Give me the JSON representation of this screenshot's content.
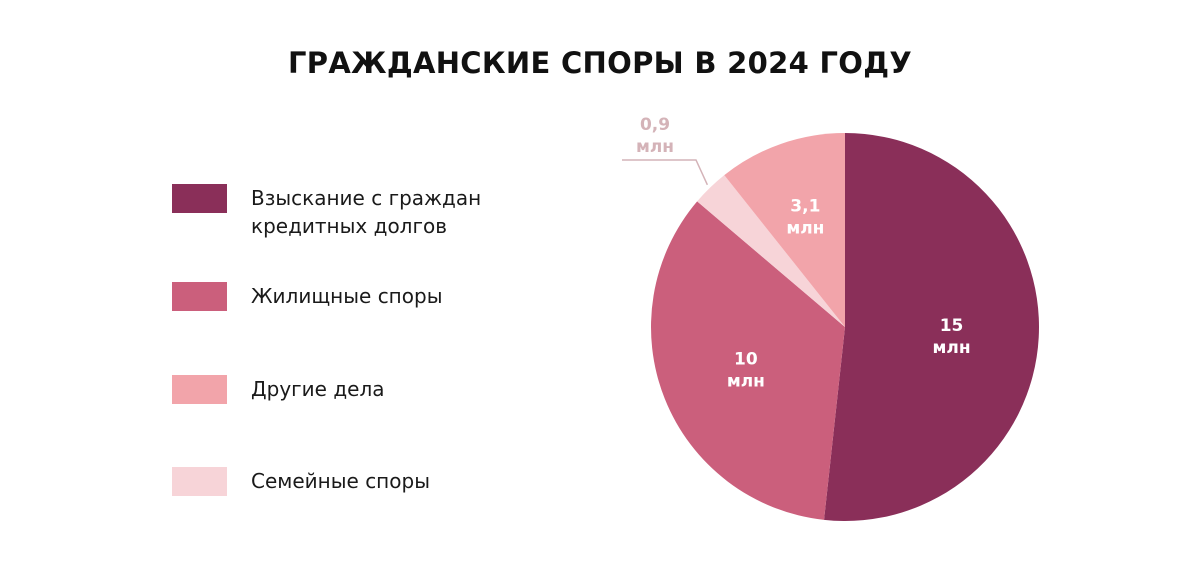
{
  "chart_data": {
    "type": "pie",
    "title": "ГРАЖДАНСКИЕ СПОРЫ В 2024 ГОДУ",
    "slices": [
      {
        "name": "Взыскание с граждан\nкредитных долгов",
        "value": 15,
        "label_top": "15",
        "label_bottom": "млн",
        "color": "#8a2f59",
        "label_pos": "inside"
      },
      {
        "name": "Жилищные споры",
        "value": 10,
        "label_top": "10",
        "label_bottom": "млн",
        "color": "#cb5f7c",
        "label_pos": "inside"
      },
      {
        "name": "Семейные споры",
        "value": 0.9,
        "label_top": "0,9",
        "label_bottom": "млн",
        "color": "#f7d4d8",
        "label_pos": "outside"
      },
      {
        "name": "Другие дела",
        "value": 3.1,
        "label_top": "3,1",
        "label_bottom": "млн",
        "color": "#f2a4aa",
        "label_pos": "inside"
      }
    ],
    "legend_order": [
      0,
      1,
      3,
      2
    ],
    "legend_position": "left"
  }
}
